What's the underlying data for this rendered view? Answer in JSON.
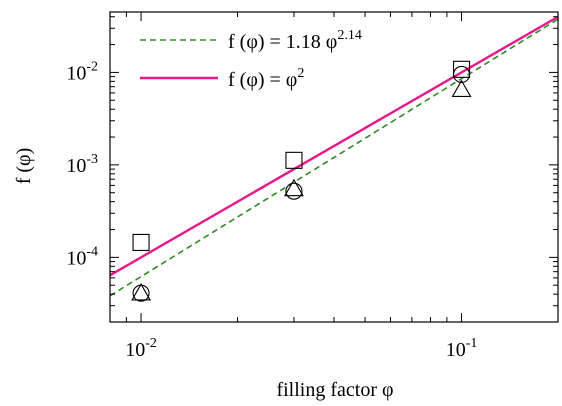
{
  "chart_data": {
    "type": "scatter",
    "xlabel": "filling factor φ",
    "ylabel": "f (φ)",
    "xscale": "log",
    "yscale": "log",
    "xlim": [
      0.008,
      0.2
    ],
    "ylim": [
      2e-05,
      0.045
    ],
    "x_ticks": [
      {
        "value": 0.01,
        "base": "10",
        "exp": "-2"
      },
      {
        "value": 0.1,
        "base": "10",
        "exp": "-1"
      }
    ],
    "y_ticks": [
      {
        "value": 0.0001,
        "base": "10",
        "exp": "-4"
      },
      {
        "value": 0.001,
        "base": "10",
        "exp": "-3"
      },
      {
        "value": 0.01,
        "base": "10",
        "exp": "-2"
      }
    ],
    "grid": false,
    "legend_position": "top-left",
    "series": [
      {
        "marker": "square",
        "points": [
          {
            "x": 0.01,
            "y": 0.000145
          },
          {
            "x": 0.03,
            "y": 0.00112
          },
          {
            "x": 0.1,
            "y": 0.0108
          }
        ]
      },
      {
        "marker": "circle",
        "points": [
          {
            "x": 0.01,
            "y": 4.1e-05
          },
          {
            "x": 0.03,
            "y": 0.00052
          },
          {
            "x": 0.1,
            "y": 0.0095
          }
        ]
      },
      {
        "marker": "triangle",
        "points": [
          {
            "x": 0.01,
            "y": 4.1e-05
          },
          {
            "x": 0.03,
            "y": 0.00055
          },
          {
            "x": 0.1,
            "y": 0.0065
          }
        ]
      }
    ],
    "lines": [
      {
        "legend_prefix": "f (φ) = 1.18 φ",
        "legend_sup": "2.14",
        "coefficient": 1.18,
        "exponent": 2.14,
        "style": "dashed",
        "color": "#2e8b22"
      },
      {
        "legend_prefix": "f (φ) = φ",
        "legend_sup": "2",
        "coefficient": 1,
        "exponent": 2,
        "style": "solid",
        "color": "#e8178a"
      }
    ]
  }
}
